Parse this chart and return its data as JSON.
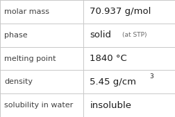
{
  "rows": [
    {
      "label": "molar mass",
      "value": "70.937 g/mol",
      "type": "plain"
    },
    {
      "label": "phase",
      "value": "solid",
      "value_suffix": "(at STP)",
      "type": "suffix"
    },
    {
      "label": "melting point",
      "value": "1840 °C",
      "type": "plain"
    },
    {
      "label": "density",
      "value": "5.45 g/cm",
      "superscript": "3",
      "type": "super"
    },
    {
      "label": "solubility in water",
      "value": "insoluble",
      "type": "plain"
    }
  ],
  "col_split": 0.478,
  "bg_color": "#ffffff",
  "border_color": "#c8c8c8",
  "label_color": "#404040",
  "value_color": "#1a1a1a",
  "suffix_color": "#666666",
  "label_fontsize": 8.0,
  "value_fontsize": 9.5,
  "suffix_fontsize": 6.5,
  "super_fontsize": 6.5,
  "figwidth": 2.52,
  "figheight": 1.69,
  "dpi": 100
}
